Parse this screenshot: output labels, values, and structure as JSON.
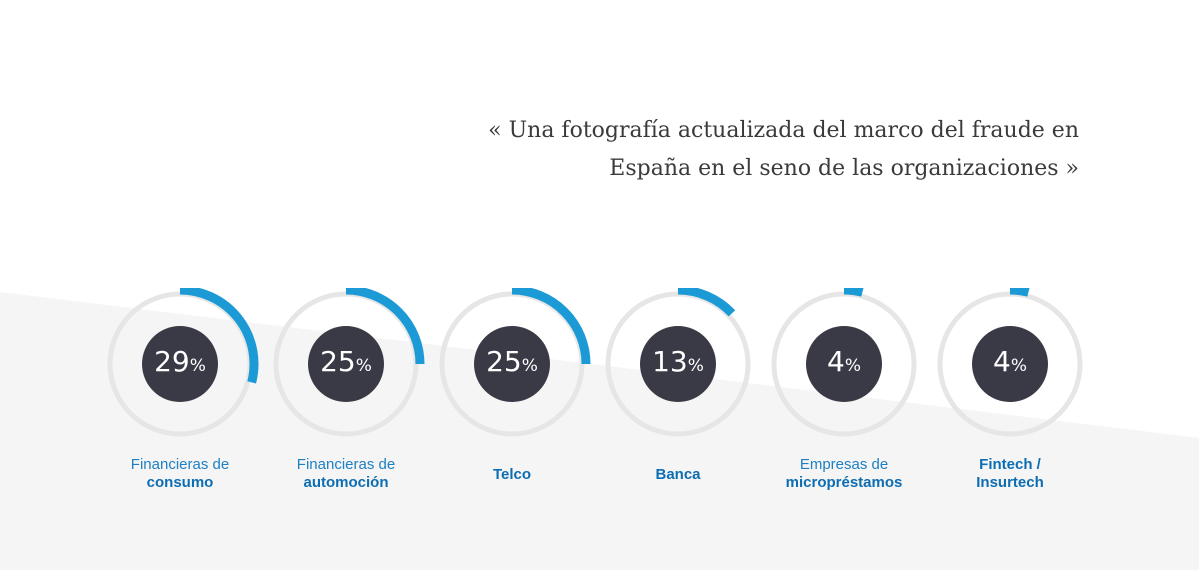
{
  "quote": {
    "line1": "« Una fotografía actualizada del marco del fraude en",
    "line2": "España en el seno de las organizaciones »"
  },
  "colors": {
    "accent": "#1c9ad6",
    "ring_track": "#e6e6e6",
    "center_fill": "#3a3a46",
    "label_blue": "#1e7fc2"
  },
  "chart_data": {
    "type": "pie",
    "unit": "%",
    "categories": [
      "Financieras de consumo",
      "Financieras de automoción",
      "Telco",
      "Banca",
      "Empresas de micropréstamos",
      "Fintech / Insurtech"
    ],
    "values": [
      29,
      25,
      25,
      13,
      4,
      4
    ]
  },
  "metrics": [
    {
      "value": "29",
      "unit": "%",
      "label_line1": "Financieras de",
      "label_line2": "consumo"
    },
    {
      "value": "25",
      "unit": "%",
      "label_line1": "Financieras de",
      "label_line2": "automoción"
    },
    {
      "value": "25",
      "unit": "%",
      "label_line1": "",
      "label_line2": "Telco"
    },
    {
      "value": "13",
      "unit": "%",
      "label_line1": "",
      "label_line2": "Banca"
    },
    {
      "value": "4",
      "unit": "%",
      "label_line1": "Empresas de",
      "label_line2": "micropréstamos"
    },
    {
      "value": "4",
      "unit": "%",
      "label_line1": "Fintech /",
      "label_line2": "Insurtech"
    }
  ]
}
